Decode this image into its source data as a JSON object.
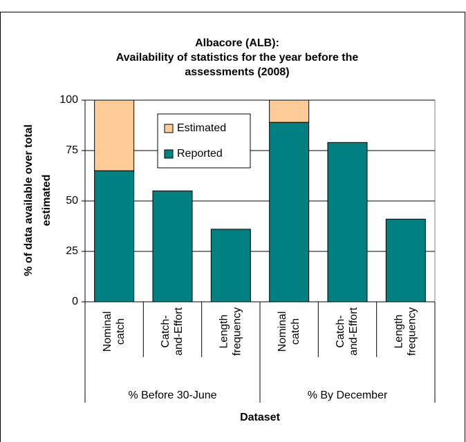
{
  "chart_data": {
    "type": "stacked_bar",
    "title": [
      "Albacore (ALB):",
      "Availability of statistics for the year before the",
      "assessments (2008)"
    ],
    "ylabel": [
      "% of data available over total",
      "estimated"
    ],
    "xlabel": "Dataset",
    "categories": [
      [
        "Nominal",
        "catch"
      ],
      [
        "Catch-",
        "and-Effort"
      ],
      [
        "Length",
        "frequency"
      ],
      [
        "Nominal",
        "catch"
      ],
      [
        "Catch-",
        "and-Effort"
      ],
      [
        "Length",
        "frequency"
      ]
    ],
    "groups": [
      "%  Before 30-June",
      "% By December"
    ],
    "series": [
      {
        "name": "Reported",
        "color": "#008080",
        "values": [
          65,
          55,
          36,
          89,
          79,
          41
        ]
      },
      {
        "name": "Estimated",
        "color": "#ffcc99",
        "values": [
          35,
          null,
          null,
          11,
          null,
          null
        ]
      }
    ],
    "ylim": [
      0,
      100
    ],
    "yticks": [
      0,
      25,
      50,
      75,
      100
    ],
    "grid": true
  }
}
